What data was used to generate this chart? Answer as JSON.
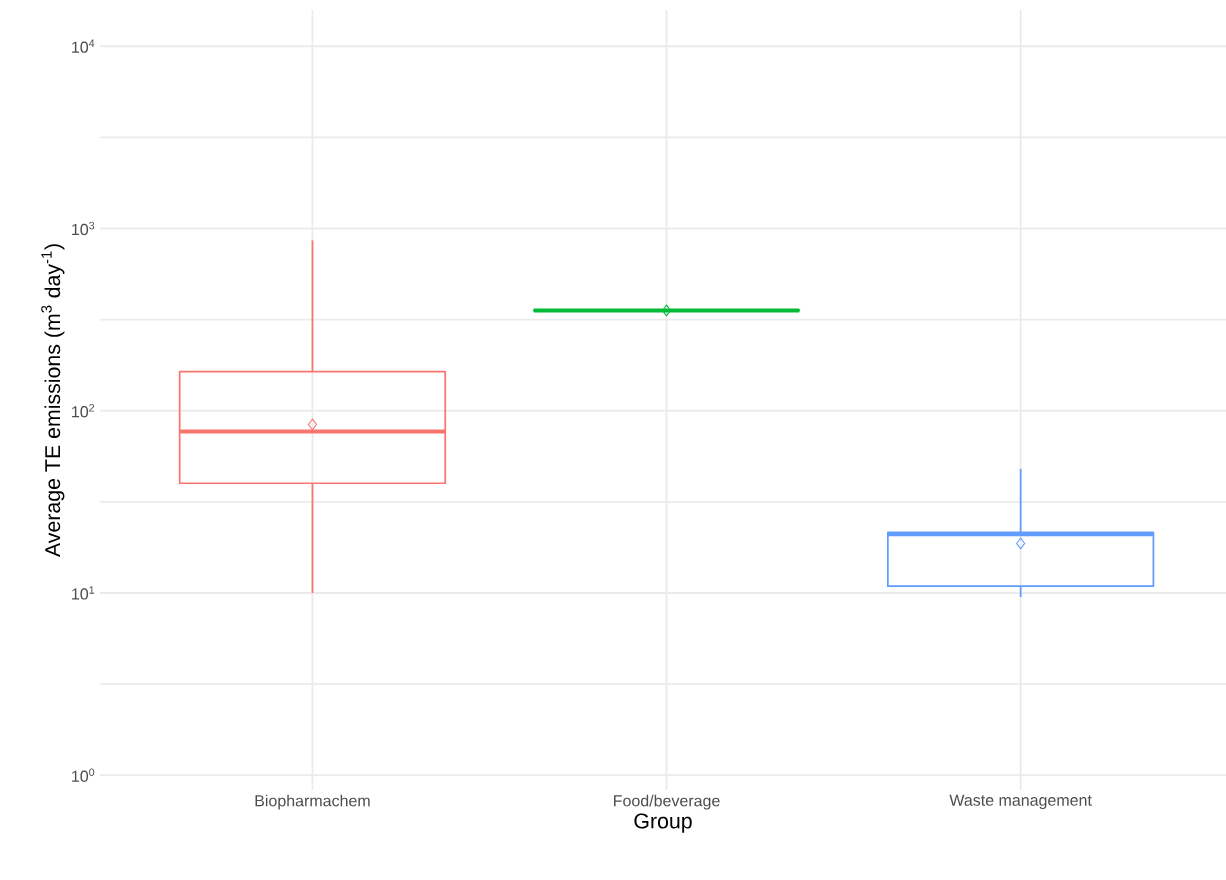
{
  "chart_data": {
    "type": "box",
    "xlabel": "Group",
    "ylabel": "Average TE emissions (m$^{3}$ day$^{-1}$)",
    "categories": [
      "Biopharmachem",
      "Food/beverage",
      "Waste management"
    ],
    "colors": [
      "#f8766d",
      "#00ba38",
      "#619cff"
    ],
    "boxes": [
      {
        "low": 10,
        "q1": 40,
        "median": 77,
        "q3": 164,
        "high": 860,
        "mean": 84
      },
      {
        "low": 355,
        "q1": 355,
        "median": 355,
        "q3": 355,
        "high": 355,
        "mean": 355
      },
      {
        "low": 9.5,
        "q1": 10.9,
        "median": 21,
        "q3": 21.5,
        "high": 48,
        "mean": 18.7
      }
    ],
    "log": "y",
    "ylim": [
      0.83,
      15800
    ],
    "yticks": [
      {
        "value": 1,
        "label": "10$^{0}$"
      },
      {
        "value": 3.16,
        "label": null
      },
      {
        "value": 10,
        "label": "10$^{1}$"
      },
      {
        "value": 31.6,
        "label": null
      },
      {
        "value": 100,
        "label": "10$^{2}$"
      },
      {
        "value": 316,
        "label": null
      },
      {
        "value": 1000,
        "label": "10$^{3}$"
      },
      {
        "value": 3160,
        "label": null
      },
      {
        "value": 10000,
        "label": "10$^{4}$"
      }
    ],
    "grid": true,
    "marker": "diamond"
  }
}
